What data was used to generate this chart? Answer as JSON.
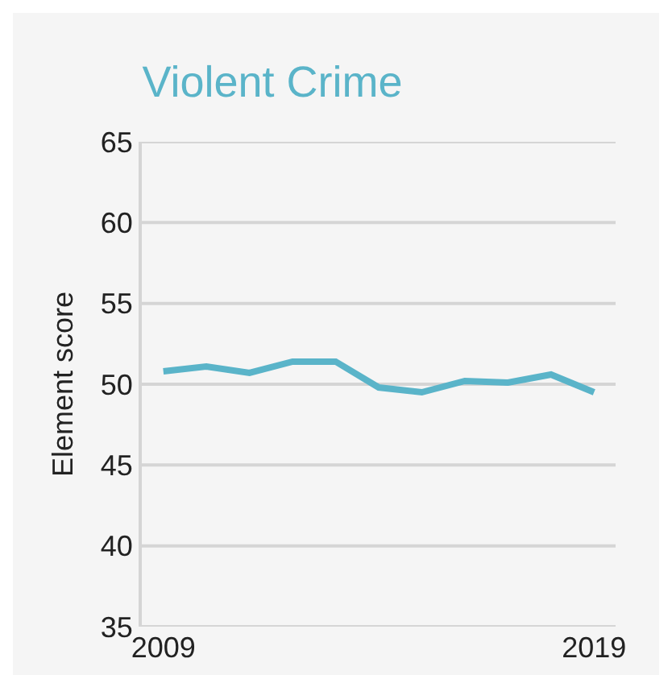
{
  "chart_data": {
    "type": "line",
    "title": "Violent Crime",
    "ylabel": "Element score",
    "x": [
      2009,
      2010,
      2011,
      2012,
      2013,
      2014,
      2015,
      2016,
      2017,
      2018,
      2019
    ],
    "series": [
      {
        "color": "#5ab4c9",
        "values": [
          50.8,
          51.1,
          50.7,
          51.4,
          51.4,
          49.8,
          49.5,
          50.2,
          50.1,
          50.6,
          49.5
        ]
      }
    ],
    "xlim": [
      2008.5,
      2019.5
    ],
    "xticks": [
      2009,
      2019
    ],
    "ylim": [
      35,
      65
    ],
    "yticks": [
      35,
      40,
      45,
      50,
      55,
      60,
      65
    ],
    "grid": "y",
    "marker": "none",
    "line_style": "solid"
  }
}
